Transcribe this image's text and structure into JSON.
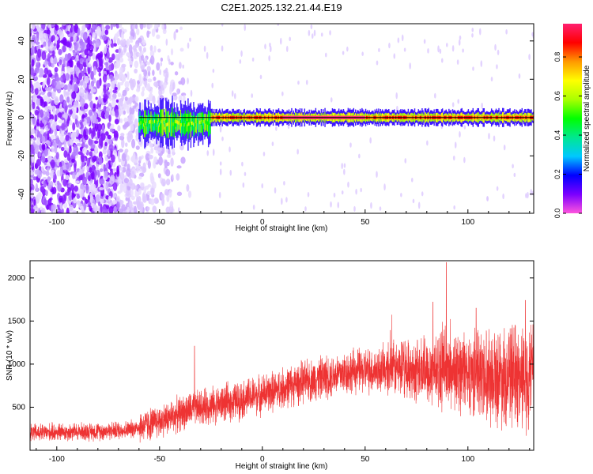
{
  "title": "C2E1.2025.132.21.44.E19",
  "colors": {
    "snr_line": "#ee3333",
    "axis": "#000000",
    "carrier_line": "#000000"
  },
  "chart_data": [
    {
      "type": "heatmap",
      "title": "C2E1.2025.132.21.44.E19",
      "xlabel": "Height of straight line (km)",
      "ylabel": "Frequency (Hz)",
      "xlim": [
        -113,
        132
      ],
      "ylim": [
        -50,
        49
      ],
      "xticks": [
        -100,
        -50,
        0,
        50,
        100
      ],
      "yticks": [
        -40,
        -20,
        0,
        20,
        40
      ],
      "colorbar": {
        "label": "Normalized spectral amplitude",
        "range": [
          0,
          0.97
        ],
        "ticks": [
          0.0,
          0.2,
          0.4,
          0.6,
          0.8
        ],
        "colormap": [
          "#ff55dd",
          "#7a00ff",
          "#0000ff",
          "#00c8ff",
          "#00e890",
          "#00ff00",
          "#aaff00",
          "#ffff00",
          "#ff9900",
          "#ff0000",
          "#ff2070"
        ]
      },
      "carrier_frequency_hz": 0,
      "noise_region_km": [
        -113,
        -55
      ],
      "signal_region_km": [
        -60,
        132
      ]
    },
    {
      "type": "line",
      "xlabel": "Height of straight line (km)",
      "ylabel": "SNR (10 * v/v)",
      "xlim": [
        -113,
        132
      ],
      "ylim": [
        0,
        2200
      ],
      "xticks": [
        -100,
        -50,
        0,
        50,
        100
      ],
      "yticks": [
        500,
        1000,
        1500,
        2000
      ],
      "trend": {
        "x": [
          -113,
          -100,
          -80,
          -65,
          -55,
          -45,
          -35,
          -25,
          -15,
          -5,
          5,
          15,
          25,
          35,
          45,
          55,
          65,
          75,
          85,
          95,
          105,
          115,
          125,
          132
        ],
        "y": [
          200,
          210,
          220,
          240,
          300,
          380,
          470,
          520,
          560,
          620,
          680,
          760,
          820,
          880,
          920,
          930,
          940,
          930,
          950,
          920,
          900,
          870,
          860,
          850
        ]
      },
      "peaks": [
        {
          "x": 89.5,
          "y": 2180
        },
        {
          "x": 83,
          "y": 1720
        },
        {
          "x": 128,
          "y": 1740
        },
        {
          "x": -33,
          "y": 1210
        },
        {
          "x": 104,
          "y": 1650
        }
      ]
    }
  ]
}
